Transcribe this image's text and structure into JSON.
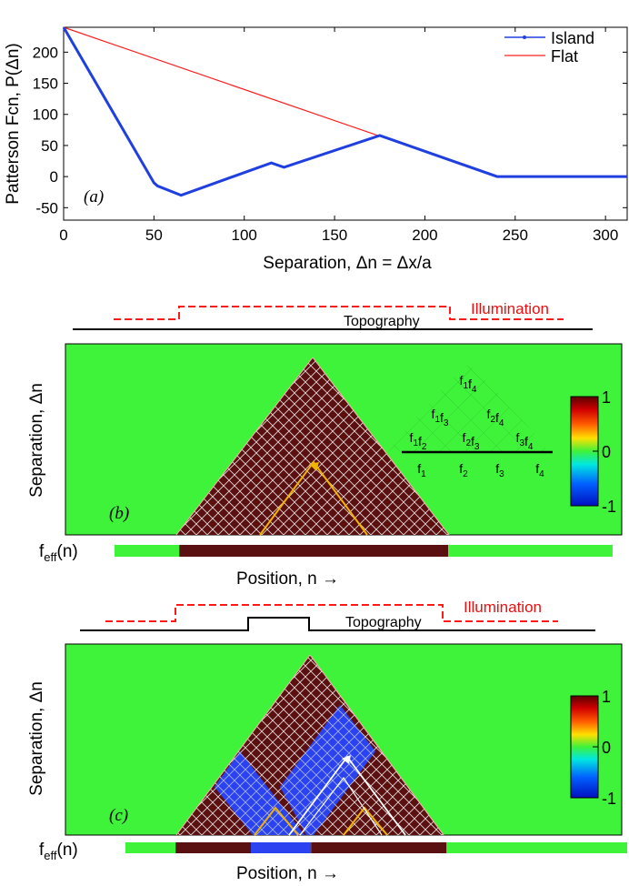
{
  "chart_data": [
    {
      "type": "line",
      "panel_label": "(a)",
      "ylabel": "Patterson Fcn, P(Δn)",
      "xlabel": "Separation, Δn = Δx/a",
      "xlim": [
        0,
        312
      ],
      "ylim": [
        -70,
        240
      ],
      "xticks": [
        "0",
        "50",
        "100",
        "150",
        "200",
        "250",
        "300"
      ],
      "yticks": [
        "-50",
        "0",
        "50",
        "100",
        "150",
        "200"
      ],
      "xtick_values": [
        0,
        50,
        100,
        150,
        200,
        250,
        300
      ],
      "ytick_values": [
        -50,
        0,
        50,
        100,
        150,
        200
      ],
      "legend_position": "top-right",
      "series": [
        {
          "name": "Island",
          "color": "#1f3fe0",
          "x": [
            0,
            50,
            52,
            65,
            115,
            122,
            175,
            240,
            312
          ],
          "y": [
            240,
            -10,
            -15,
            -30,
            22,
            15,
            66,
            0,
            0
          ]
        },
        {
          "name": "Flat",
          "color": "#ff2020",
          "x": [
            0,
            240,
            312
          ],
          "y": [
            240,
            0,
            0
          ]
        }
      ]
    },
    {
      "type": "heatmap",
      "panel_label": "(b)",
      "ylabel": "Separation, Δn",
      "xlabel": "Position, n →",
      "feff_label": "f",
      "feff_sub": "eff",
      "feff_suffix": "(n)",
      "illumination_label": "Illumination",
      "topography_label": "Topography",
      "colorbar": {
        "ticks": [
          "1",
          "0",
          "-1"
        ],
        "tick_values": [
          1,
          0,
          -1
        ],
        "range": [
          -1,
          1
        ]
      },
      "inset": {
        "rows": [
          [
            [
              "1",
              "4"
            ]
          ],
          [
            [
              "1",
              "3"
            ],
            [
              "2",
              "4"
            ]
          ],
          [
            [
              "1",
              "2"
            ],
            [
              "2",
              "3"
            ],
            [
              "3",
              "4"
            ]
          ]
        ],
        "base": [
          "1",
          "2",
          "3",
          "4"
        ],
        "symbol": "f"
      },
      "feff_segments": [
        {
          "from": 0,
          "to": 0.13,
          "value": 0
        },
        {
          "from": 0.13,
          "to": 0.67,
          "value": 1
        },
        {
          "from": 0.67,
          "to": 1,
          "value": 0
        }
      ]
    },
    {
      "type": "heatmap",
      "panel_label": "(c)",
      "ylabel": "Separation, Δn",
      "xlabel": "Position, n →",
      "feff_label": "f",
      "feff_sub": "eff",
      "feff_suffix": "(n)",
      "illumination_label": "Illumination",
      "topography_label": "Topography",
      "colorbar": {
        "ticks": [
          "1",
          "0",
          "-1"
        ],
        "tick_values": [
          1,
          0,
          -1
        ],
        "range": [
          -1,
          1
        ]
      },
      "feff_segments": [
        {
          "from": 0,
          "to": 0.1,
          "value": 0
        },
        {
          "from": 0.1,
          "to": 0.25,
          "value": 1
        },
        {
          "from": 0.25,
          "to": 0.37,
          "value": -1
        },
        {
          "from": 0.37,
          "to": 0.64,
          "value": 1
        },
        {
          "from": 0.64,
          "to": 1,
          "value": 0
        }
      ]
    }
  ],
  "colors": {
    "green": "#3ff23a",
    "maroon": "#5a1010",
    "blue": "#2a42f0",
    "yellow": "#f0b400",
    "red_dash": "#ff1a1a",
    "illum_text": "#e81010"
  }
}
